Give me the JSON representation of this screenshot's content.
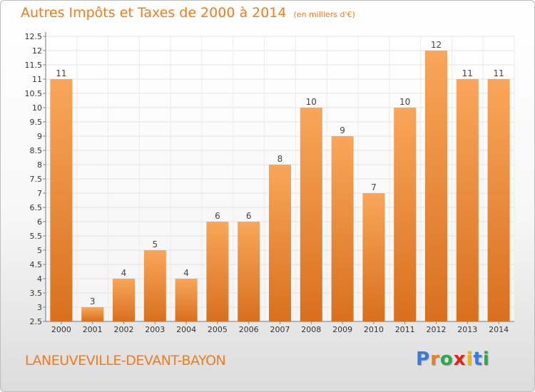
{
  "header": {
    "title": "Autres Impôts et Taxes de 2000 à 2014",
    "unit": "(en milliers d'€)"
  },
  "footer": {
    "commune": "LANEUVEVILLE-DEVANT-BAYON",
    "logo_letters": [
      "P",
      "r",
      "o",
      "x",
      "i",
      "t",
      "i"
    ],
    "logo_colors": [
      "#3a7bd5",
      "#f07c1e",
      "#2aa84a",
      "#e2231a",
      "#f2b600",
      "#3a7bd5",
      "#2aa84a"
    ]
  },
  "chart_data": {
    "type": "bar",
    "categories": [
      "2000",
      "2001",
      "2002",
      "2003",
      "2004",
      "2005",
      "2006",
      "2007",
      "2008",
      "2009",
      "2010",
      "2011",
      "2012",
      "2013",
      "2014"
    ],
    "values": [
      11,
      3,
      4,
      5,
      4,
      6,
      6,
      8,
      10,
      9,
      7,
      10,
      12,
      11,
      11
    ],
    "data_labels": [
      "11",
      "3",
      "4",
      "5",
      "4",
      "6",
      "6",
      "8",
      "10",
      "9",
      "7",
      "10",
      "12",
      "11",
      "11"
    ],
    "ylim": [
      2.5,
      12.5
    ],
    "yticks": [
      "2.5",
      "3",
      "3.5",
      "4",
      "4.5",
      "5",
      "5.5",
      "6",
      "6.5",
      "7",
      "7.5",
      "8",
      "8.5",
      "9",
      "9.5",
      "10",
      "10.5",
      "11",
      "11.5",
      "12",
      "12.5"
    ],
    "grid": true,
    "bar_color_light": "#f9a65a",
    "bar_color_dark": "#d8701e"
  }
}
